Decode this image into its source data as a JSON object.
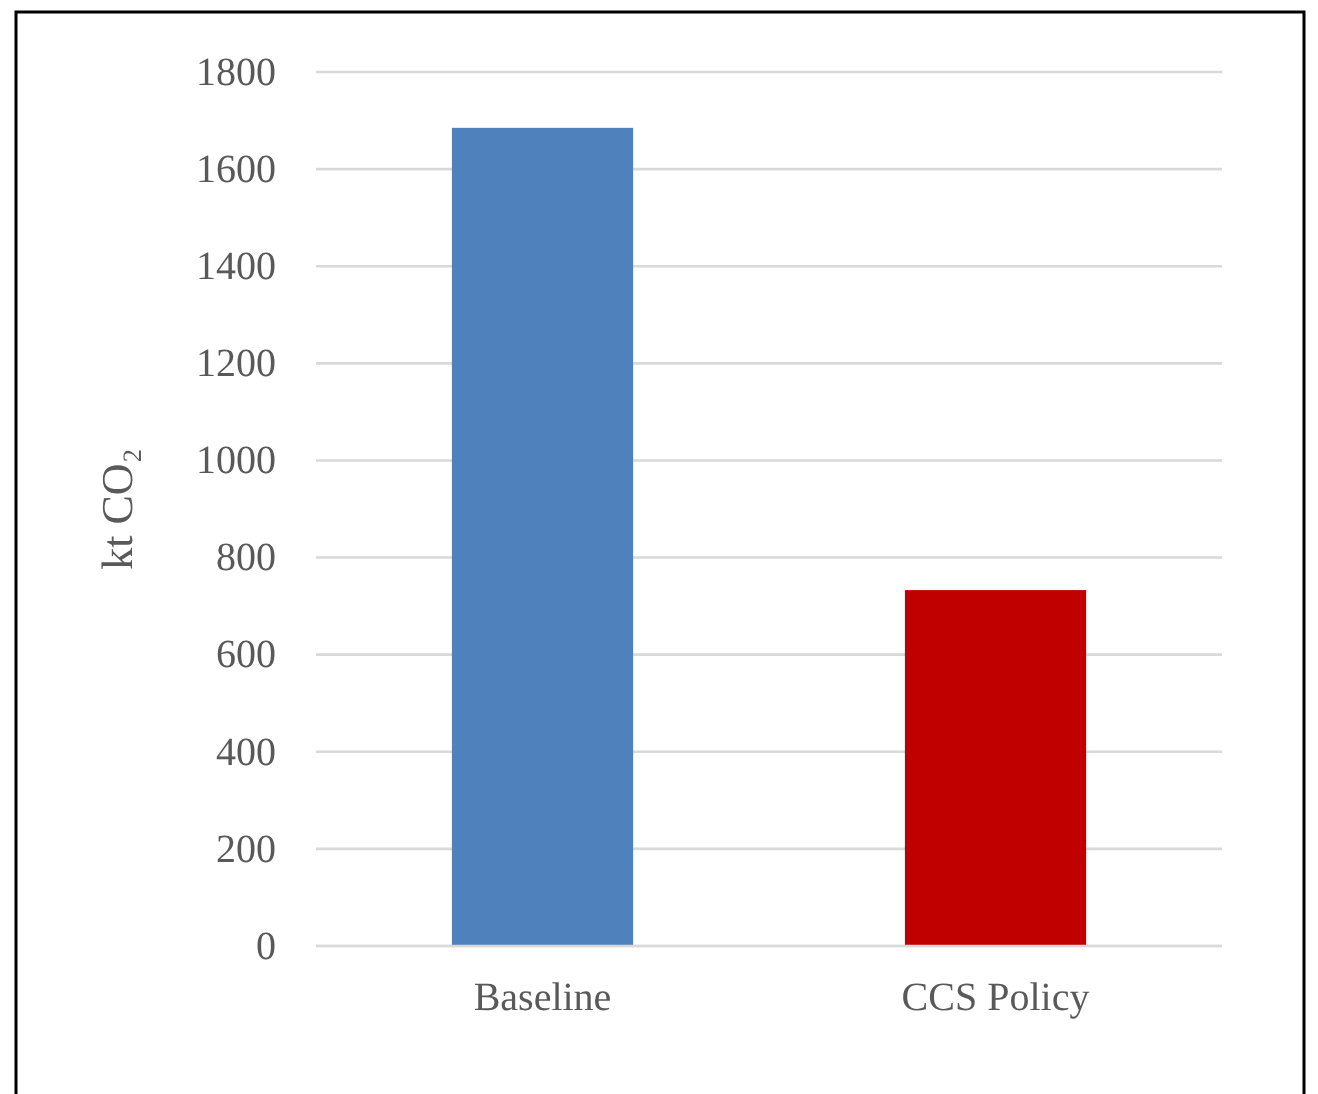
{
  "chart_data": {
    "type": "bar",
    "ylabel": "kt CO₂",
    "categories": [
      "Baseline",
      "CCS Policy"
    ],
    "values": [
      1685,
      733
    ],
    "colors": [
      "#4f81bd",
      "#c00000"
    ],
    "ylim": [
      0,
      1800
    ],
    "yticks": [
      0,
      200,
      400,
      600,
      800,
      1000,
      1200,
      1400,
      1600,
      1800
    ],
    "grid": "y"
  }
}
